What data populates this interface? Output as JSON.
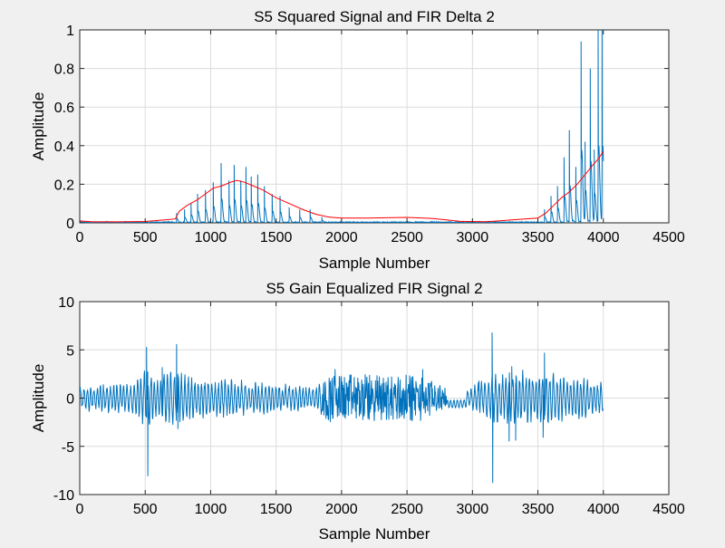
{
  "chart_data": [
    {
      "type": "line",
      "title": "S5 Squared Signal and FIR Delta 2",
      "xlabel": "Sample Number",
      "ylabel": "Amplitude",
      "xlim": [
        0,
        4500
      ],
      "ylim": [
        0,
        1
      ],
      "grid": true,
      "x_ticks": [
        "0",
        "500",
        "1000",
        "1500",
        "2000",
        "2500",
        "3000",
        "3500",
        "4000",
        "4500"
      ],
      "y_ticks": [
        "0",
        "0.2",
        "0.4",
        "0.6",
        "0.8",
        "1"
      ],
      "series": [
        {
          "color": "#0072bd",
          "style": "spiky",
          "baseline": 0.005,
          "peaks": [
            [
              740,
              0.05
            ],
            [
              800,
              0.07
            ],
            [
              850,
              0.1
            ],
            [
              900,
              0.15
            ],
            [
              960,
              0.17
            ],
            [
              1020,
              0.21
            ],
            [
              1080,
              0.31
            ],
            [
              1140,
              0.22
            ],
            [
              1180,
              0.3
            ],
            [
              1230,
              0.22
            ],
            [
              1270,
              0.29
            ],
            [
              1310,
              0.24
            ],
            [
              1360,
              0.25
            ],
            [
              1410,
              0.19
            ],
            [
              1470,
              0.15
            ],
            [
              1530,
              0.14
            ],
            [
              1600,
              0.08
            ],
            [
              1680,
              0.07
            ],
            [
              1760,
              0.07
            ],
            [
              1850,
              0.03
            ],
            [
              3550,
              0.07
            ],
            [
              3600,
              0.14
            ],
            [
              3650,
              0.19
            ],
            [
              3700,
              0.34
            ],
            [
              3740,
              0.48
            ],
            [
              3790,
              0.29
            ],
            [
              3830,
              0.94
            ],
            [
              3860,
              0.42
            ],
            [
              3900,
              0.8
            ],
            [
              3930,
              0.38
            ],
            [
              3960,
              1.0
            ],
            [
              3990,
              1.0
            ]
          ]
        },
        {
          "color": "#ff0000",
          "style": "envelope",
          "points": [
            [
              0,
              0.01
            ],
            [
              100,
              0.005
            ],
            [
              300,
              0.005
            ],
            [
              500,
              0.007
            ],
            [
              650,
              0.015
            ],
            [
              730,
              0.02
            ],
            [
              760,
              0.06
            ],
            [
              820,
              0.09
            ],
            [
              900,
              0.12
            ],
            [
              960,
              0.15
            ],
            [
              1020,
              0.18
            ],
            [
              1080,
              0.19
            ],
            [
              1150,
              0.21
            ],
            [
              1200,
              0.22
            ],
            [
              1260,
              0.21
            ],
            [
              1330,
              0.19
            ],
            [
              1400,
              0.17
            ],
            [
              1500,
              0.13
            ],
            [
              1600,
              0.1
            ],
            [
              1700,
              0.07
            ],
            [
              1800,
              0.045
            ],
            [
              1900,
              0.03
            ],
            [
              2000,
              0.025
            ],
            [
              2200,
              0.025
            ],
            [
              2500,
              0.028
            ],
            [
              2700,
              0.022
            ],
            [
              2800,
              0.015
            ],
            [
              2900,
              0.008
            ],
            [
              3100,
              0.006
            ],
            [
              3200,
              0.01
            ],
            [
              3300,
              0.015
            ],
            [
              3400,
              0.02
            ],
            [
              3500,
              0.025
            ],
            [
              3560,
              0.05
            ],
            [
              3620,
              0.09
            ],
            [
              3680,
              0.13
            ],
            [
              3740,
              0.16
            ],
            [
              3800,
              0.2
            ],
            [
              3860,
              0.25
            ],
            [
              3920,
              0.3
            ],
            [
              3960,
              0.33
            ],
            [
              3980,
              0.35
            ],
            [
              4000,
              0.37
            ]
          ]
        }
      ]
    },
    {
      "type": "line",
      "title": "S5 Gain Equalized FIR Signal 2",
      "xlabel": "Sample Number",
      "ylabel": "Amplitude",
      "xlim": [
        0,
        4500
      ],
      "ylim": [
        -10,
        10
      ],
      "grid": true,
      "x_ticks": [
        "0",
        "500",
        "1000",
        "1500",
        "2000",
        "2500",
        "3000",
        "3500",
        "4000",
        "4500"
      ],
      "y_ticks": [
        "-10",
        "-5",
        "0",
        "5",
        "10"
      ],
      "series": [
        {
          "color": "#0072bd",
          "style": "oscillating",
          "amplitude_envelope": [
            [
              0,
              1.2
            ],
            [
              200,
              1.5
            ],
            [
              400,
              1.5
            ],
            [
              480,
              2.5
            ],
            [
              520,
              3
            ],
            [
              600,
              2.2
            ],
            [
              700,
              2.8
            ],
            [
              900,
              2.0
            ],
            [
              1200,
              1.8
            ],
            [
              1500,
              1.5
            ],
            [
              1800,
              1.3
            ],
            [
              1900,
              2.5
            ],
            [
              2000,
              2.5
            ],
            [
              2300,
              2.5
            ],
            [
              2600,
              2.4
            ],
            [
              2800,
              1.0
            ],
            [
              2900,
              0.6
            ],
            [
              3100,
              2.0
            ],
            [
              3200,
              2.5
            ],
            [
              3500,
              2.8
            ],
            [
              3700,
              2.2
            ],
            [
              4000,
              1.8
            ]
          ],
          "spikes": [
            [
              510,
              5.3
            ],
            [
              520,
              -8.1
            ],
            [
              740,
              5.6
            ],
            [
              750,
              -3.2
            ],
            [
              630,
              3.2
            ],
            [
              1950,
              3.0
            ],
            [
              2620,
              3.0
            ],
            [
              3150,
              6.8
            ],
            [
              3155,
              -8.8
            ],
            [
              3050,
              1.8
            ],
            [
              3300,
              3.3
            ],
            [
              3330,
              -4.4
            ],
            [
              3550,
              4.7
            ],
            [
              3540,
              -4.1
            ],
            [
              3280,
              -4.5
            ]
          ]
        }
      ]
    }
  ]
}
